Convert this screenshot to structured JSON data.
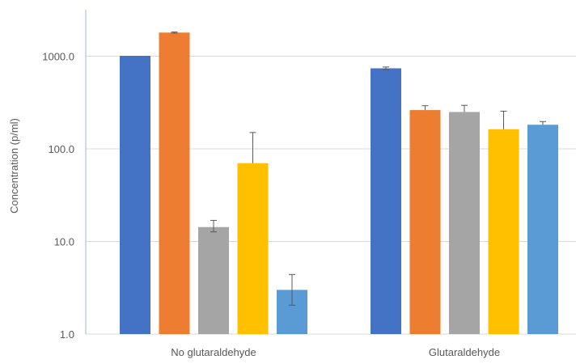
{
  "chart_data": {
    "type": "bar",
    "title": "",
    "xlabel": "",
    "ylabel": "Concentration (p/ml)",
    "yscale": "log",
    "ylim": [
      1,
      3000
    ],
    "grid": true,
    "legend": "none",
    "y_ticks": [
      {
        "value": 1,
        "label": "1.0"
      },
      {
        "value": 10,
        "label": "10.0"
      },
      {
        "value": 100,
        "label": "100.0"
      },
      {
        "value": 1000,
        "label": "1000.0"
      }
    ],
    "categories": [
      "No glutaraldehyde",
      "Glutaraldehyde"
    ],
    "series": [
      {
        "color": "#4472C4",
        "values": [
          1010,
          740
        ],
        "err_plus": [
          0,
          25
        ],
        "err_minus": [
          0,
          25
        ]
      },
      {
        "color": "#ED7D31",
        "values": [
          1800,
          262
        ],
        "err_plus": [
          25,
          30
        ],
        "err_minus": [
          25,
          0
        ]
      },
      {
        "color": "#A5A5A5",
        "values": [
          14.3,
          250
        ],
        "err_plus": [
          2.6,
          45
        ],
        "err_minus": [
          1.6,
          0
        ]
      },
      {
        "color": "#FFC000",
        "values": [
          70,
          163
        ],
        "err_plus": [
          80,
          92
        ],
        "err_minus": [
          0,
          0
        ]
      },
      {
        "color": "#5B9BD5",
        "values": [
          3.0,
          182
        ],
        "err_plus": [
          1.4,
          15
        ],
        "err_minus": [
          0.95,
          0
        ]
      }
    ]
  }
}
